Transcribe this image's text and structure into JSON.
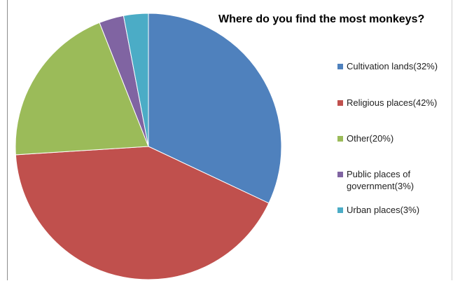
{
  "chart_data": {
    "type": "pie",
    "title": "Where do you find the most monkeys?",
    "categories": [
      "Cultivation lands",
      "Religious places",
      "Other",
      "Public places of government",
      "Urban places"
    ],
    "values": [
      32,
      42,
      20,
      3,
      3
    ],
    "colors": [
      "#4f81bd",
      "#c0504d",
      "#9bbb59",
      "#8064a2",
      "#4bacc6"
    ],
    "legend": {
      "position": "right",
      "entries": [
        "Cultivation lands(32%)",
        "Religious places(42%)",
        "Other(20%)",
        "Public places of government(3%)",
        "Urban places(3%)"
      ]
    }
  }
}
